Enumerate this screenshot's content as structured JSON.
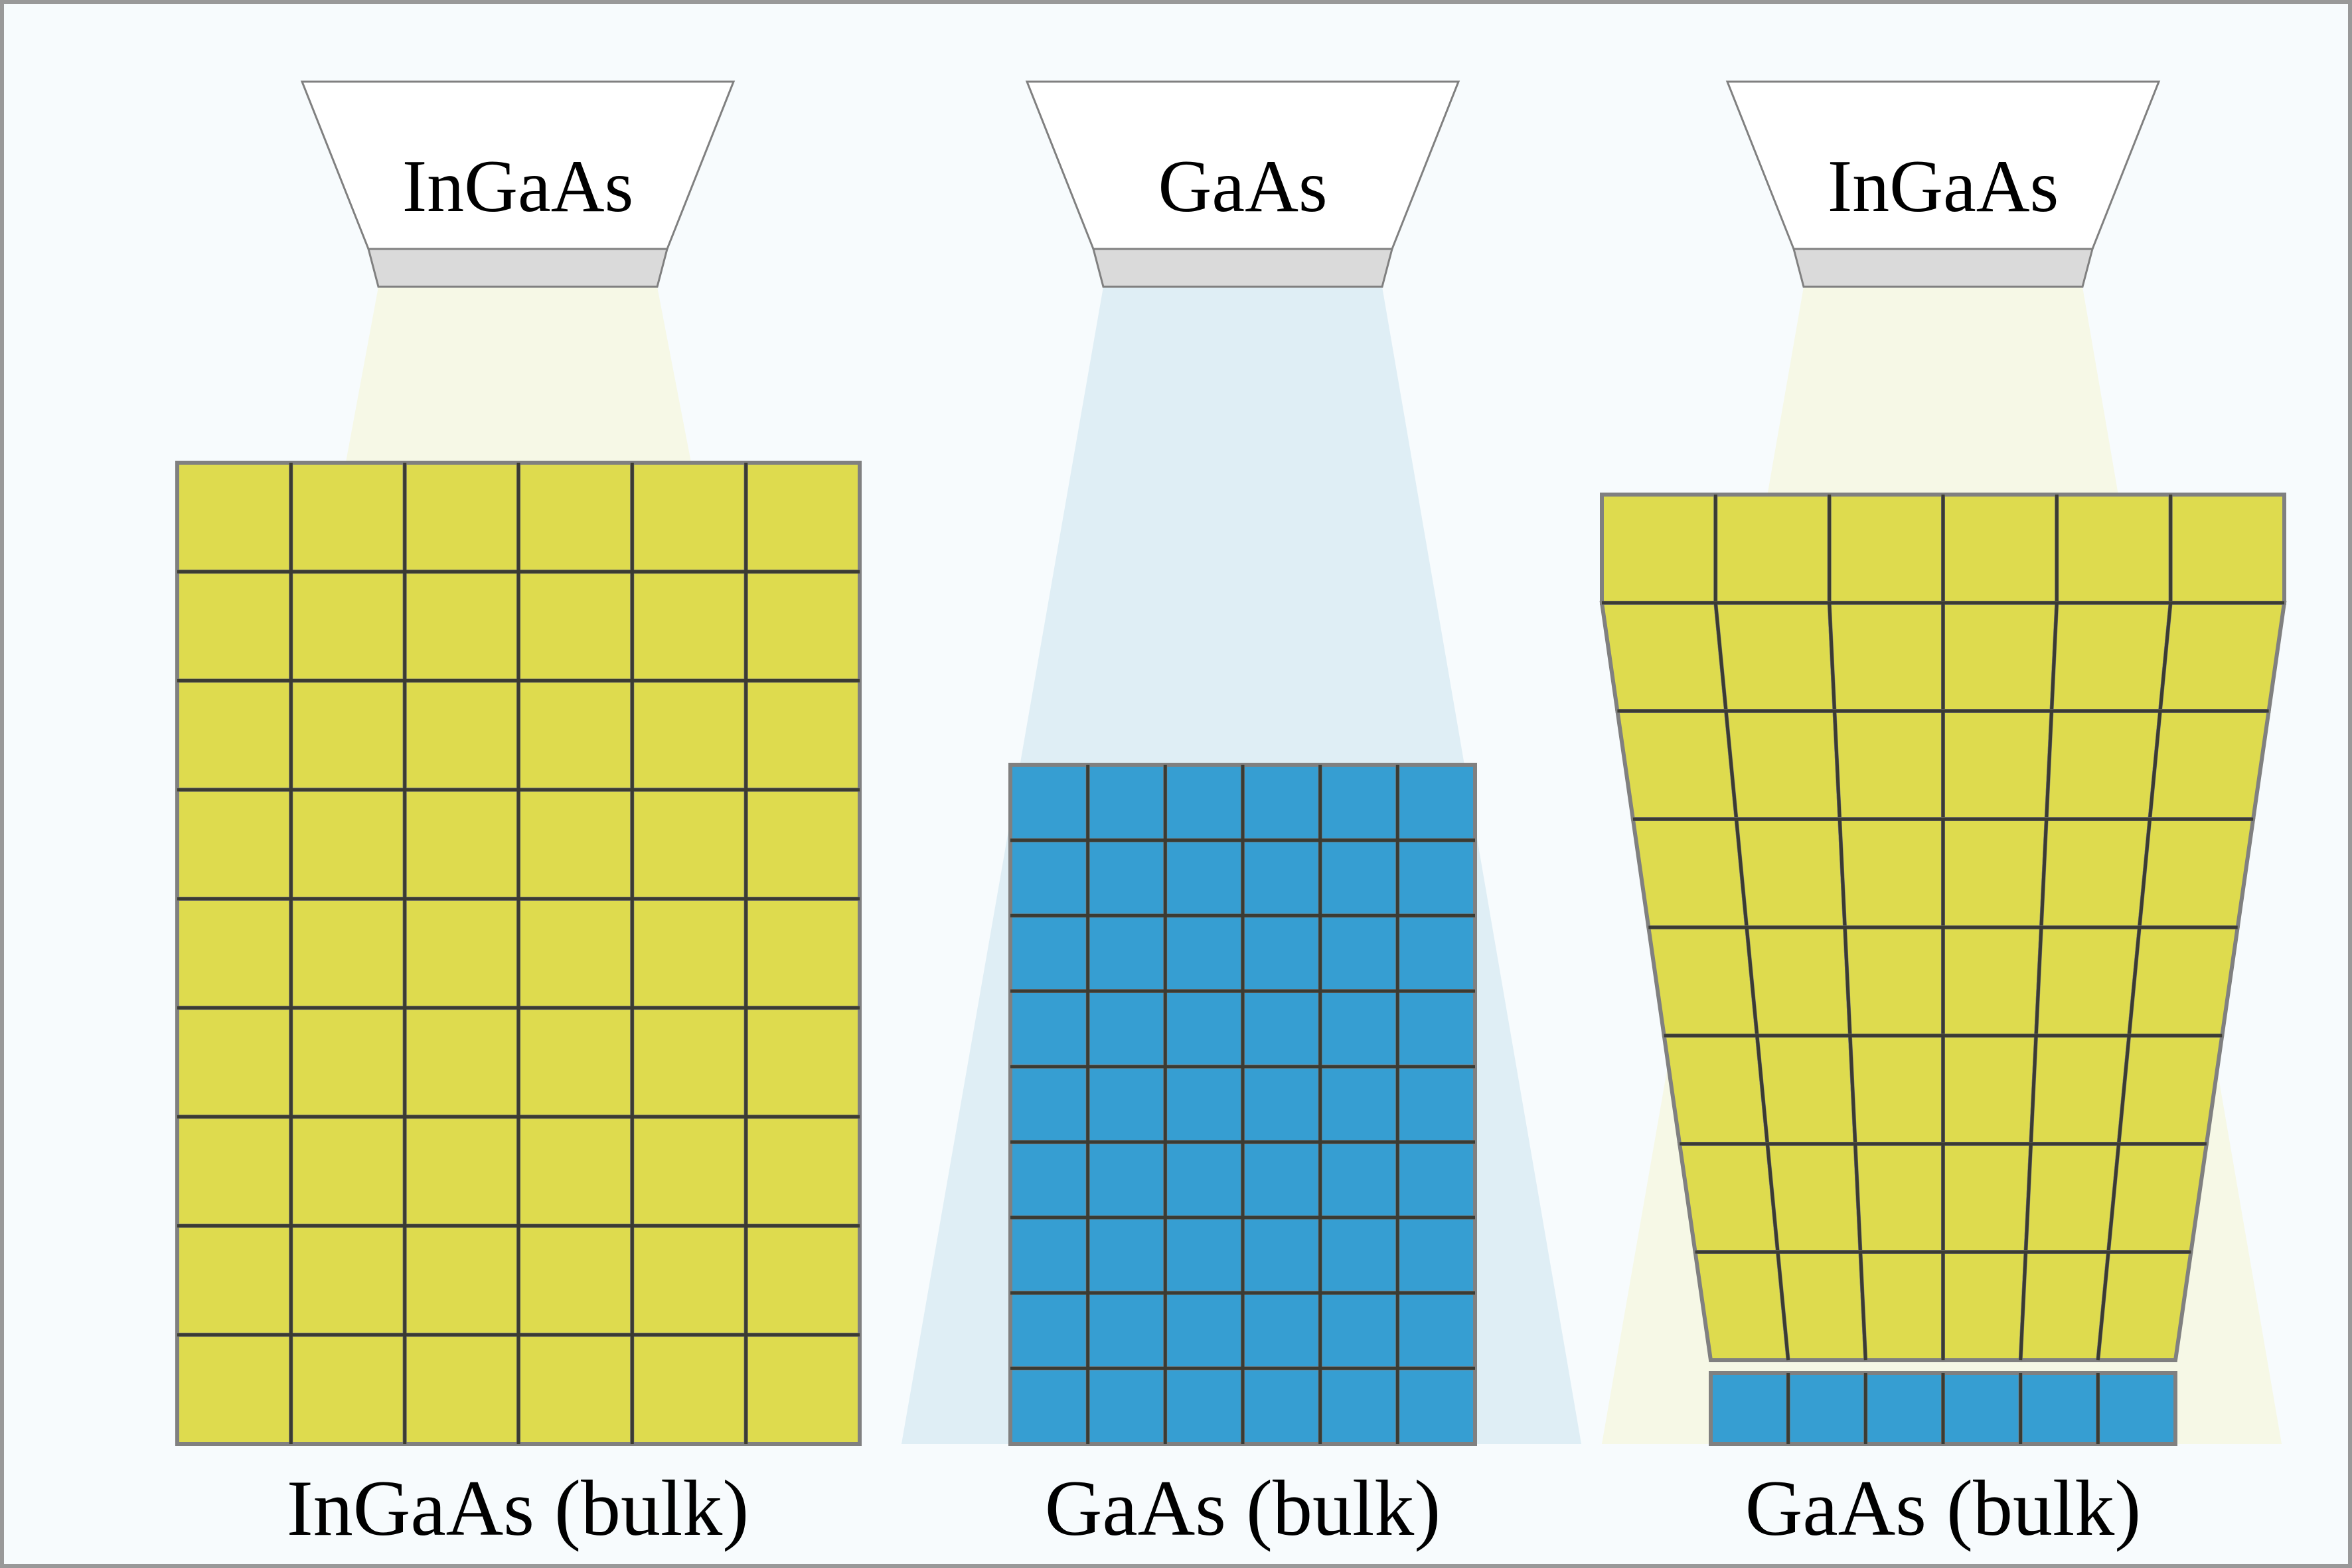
{
  "colors": {
    "background": "#f7fbfd",
    "frame": "#999999",
    "ingaas_cell": "#dedb4e",
    "gaas_cell": "#369ed2",
    "grid_line": "#3b3b33",
    "cell_outline": "#808080",
    "ingaas_beam": "#f6f8e6",
    "gaas_beam": "#dfeef5",
    "source_body": "#ffffff",
    "source_outline": "#808080",
    "source_nozzle": "#dadada"
  },
  "panels": [
    {
      "source_label": "InGaAs",
      "bulk_label": "InGaAs (bulk)",
      "deposited_material": "InGaAs",
      "substrate_material": "InGaAs",
      "grid": {
        "rows": 9,
        "cols": 6
      },
      "strain": "none"
    },
    {
      "source_label": "GaAs",
      "bulk_label": "GaAs (bulk)",
      "deposited_material": "GaAs",
      "substrate_material": "GaAs",
      "grid": {
        "rows": 9,
        "cols": 6
      },
      "strain": "none"
    },
    {
      "source_label": "InGaAs",
      "bulk_label": "GaAs (bulk)",
      "deposited_material": "InGaAs",
      "substrate_material": "GaAs",
      "grid": {
        "rows": 8,
        "cols": 6
      },
      "strain": "relaxation with misfit dislocations"
    }
  ]
}
